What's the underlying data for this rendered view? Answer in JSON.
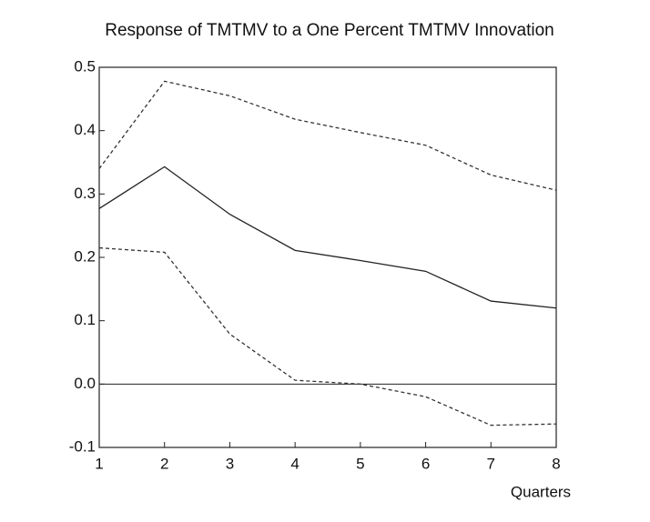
{
  "chart_data": {
    "type": "line",
    "title": "Response of TMTMV to a One Percent TMTMV Innovation",
    "x_label": "Quarters",
    "x": [
      1,
      2,
      3,
      4,
      5,
      6,
      7,
      8
    ],
    "series": [
      {
        "color": "#222222",
        "dashed": false,
        "values": [
          0.277,
          0.343,
          0.268,
          0.211,
          0.195,
          0.178,
          0.131,
          0.12
        ]
      },
      {
        "color": "#333333",
        "dashed": true,
        "values": [
          0.34,
          0.478,
          0.455,
          0.418,
          0.397,
          0.377,
          0.33,
          0.306
        ]
      },
      {
        "color": "#333333",
        "dashed": true,
        "values": [
          0.215,
          0.208,
          0.079,
          0.006,
          0.0,
          -0.02,
          -0.065,
          -0.063
        ]
      }
    ],
    "xlim": [
      1,
      8
    ],
    "xticks": [
      1,
      2,
      3,
      4,
      5,
      6,
      7,
      8
    ],
    "ylim": [
      -0.1,
      0.5
    ],
    "yticks": [
      -0.1,
      {
        "value": 0,
        "label": "0.0"
      },
      0.1,
      0.2,
      0.3,
      0.4,
      0.5
    ],
    "reference_line": 0,
    "grid": false
  }
}
